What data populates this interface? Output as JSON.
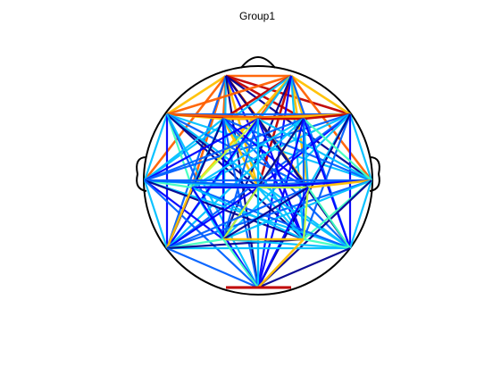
{
  "figure": {
    "title": "Group1",
    "colormap": [
      "#00008f",
      "#0000ff",
      "#0060ff",
      "#00c0ff",
      "#40ffc0",
      "#c0ff40",
      "#ffc000",
      "#ff6000",
      "#c00000"
    ]
  },
  "diagram": {
    "electrode_count": 17,
    "connections": "all-to-all"
  }
}
